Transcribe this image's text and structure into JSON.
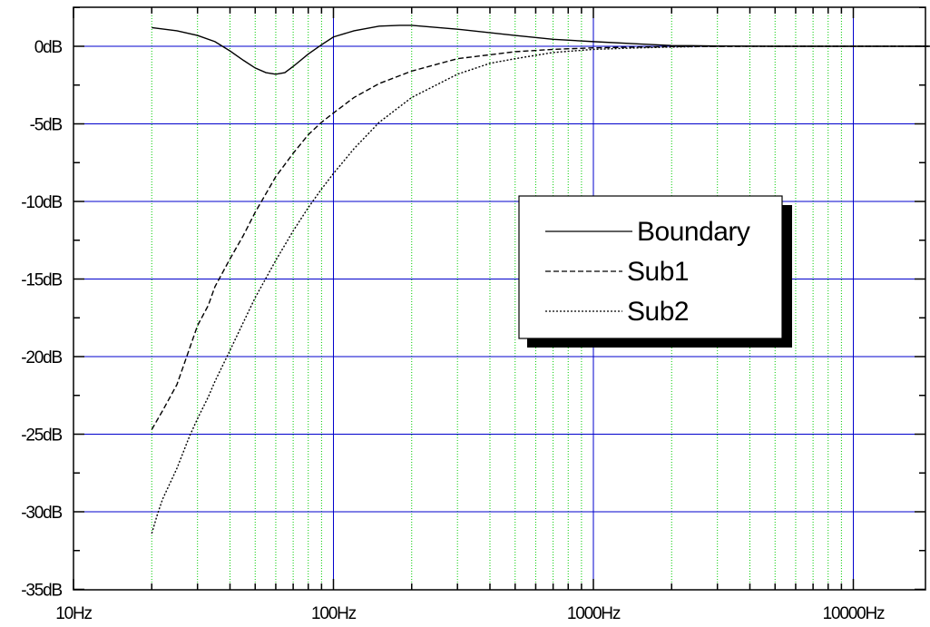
{
  "chart_data": {
    "type": "line",
    "x_scale": "log",
    "xlim": [
      10,
      20000
    ],
    "ylim": [
      -35,
      3
    ],
    "x_major_ticks": [
      10,
      100,
      1000,
      10000
    ],
    "x_tick_labels": [
      "10Hz",
      "100Hz",
      "1000Hz",
      "10000Hz"
    ],
    "y_major_ticks": [
      0,
      -5,
      -10,
      -15,
      -20,
      -25,
      -30,
      -35
    ],
    "y_tick_labels": [
      "0dB",
      "-5dB",
      "-10dB",
      "-15dB",
      "-20dB",
      "-25dB",
      "-30dB",
      "-35dB"
    ],
    "grid": {
      "major_color": "#0000cc",
      "minor_color": "#00cc00"
    },
    "legend_position": "center-right",
    "series": [
      {
        "name": "Boundary",
        "dash": "solid",
        "points": [
          [
            20,
            1.2
          ],
          [
            25,
            1.0
          ],
          [
            30,
            0.7
          ],
          [
            35,
            0.3
          ],
          [
            40,
            -0.3
          ],
          [
            45,
            -0.9
          ],
          [
            50,
            -1.4
          ],
          [
            55,
            -1.7
          ],
          [
            60,
            -1.8
          ],
          [
            65,
            -1.7
          ],
          [
            70,
            -1.3
          ],
          [
            80,
            -0.5
          ],
          [
            90,
            0.1
          ],
          [
            100,
            0.6
          ],
          [
            120,
            1.0
          ],
          [
            150,
            1.3
          ],
          [
            180,
            1.35
          ],
          [
            200,
            1.35
          ],
          [
            300,
            1.1
          ],
          [
            500,
            0.7
          ],
          [
            700,
            0.45
          ],
          [
            1000,
            0.3
          ],
          [
            1500,
            0.15
          ],
          [
            2000,
            0.05
          ],
          [
            3000,
            0.02
          ],
          [
            5000,
            0.0
          ],
          [
            10000,
            0.0
          ],
          [
            20000,
            0.0
          ]
        ]
      },
      {
        "name": "Sub1",
        "dash": "dashed",
        "points": [
          [
            20,
            -24.7
          ],
          [
            22,
            -23.5
          ],
          [
            25,
            -21.8
          ],
          [
            27,
            -20.2
          ],
          [
            30,
            -18.0
          ],
          [
            33,
            -16.7
          ],
          [
            35,
            -15.5
          ],
          [
            40,
            -13.7
          ],
          [
            45,
            -12.2
          ],
          [
            50,
            -10.7
          ],
          [
            55,
            -9.5
          ],
          [
            60,
            -8.4
          ],
          [
            70,
            -6.9
          ],
          [
            80,
            -5.7
          ],
          [
            90,
            -4.9
          ],
          [
            100,
            -4.3
          ],
          [
            120,
            -3.3
          ],
          [
            150,
            -2.4
          ],
          [
            200,
            -1.6
          ],
          [
            300,
            -0.8
          ],
          [
            500,
            -0.35
          ],
          [
            700,
            -0.2
          ],
          [
            1000,
            -0.1
          ],
          [
            1500,
            -0.05
          ],
          [
            2000,
            -0.02
          ],
          [
            5000,
            0.0
          ],
          [
            20000,
            0.0
          ]
        ]
      },
      {
        "name": "Sub2",
        "dash": "dotted",
        "points": [
          [
            20,
            -31.4
          ],
          [
            21,
            -30.2
          ],
          [
            22,
            -29.2
          ],
          [
            25,
            -27.2
          ],
          [
            28,
            -25.1
          ],
          [
            30,
            -24.0
          ],
          [
            33,
            -22.6
          ],
          [
            35,
            -21.6
          ],
          [
            40,
            -19.6
          ],
          [
            45,
            -17.8
          ],
          [
            50,
            -16.2
          ],
          [
            60,
            -13.8
          ],
          [
            70,
            -11.9
          ],
          [
            80,
            -10.4
          ],
          [
            90,
            -9.2
          ],
          [
            100,
            -8.2
          ],
          [
            120,
            -6.6
          ],
          [
            150,
            -4.9
          ],
          [
            200,
            -3.3
          ],
          [
            300,
            -1.8
          ],
          [
            400,
            -1.1
          ],
          [
            500,
            -0.8
          ],
          [
            700,
            -0.4
          ],
          [
            1000,
            -0.2
          ],
          [
            1500,
            -0.1
          ],
          [
            2000,
            -0.05
          ],
          [
            3000,
            0.0
          ],
          [
            20000,
            0.0
          ]
        ]
      }
    ]
  }
}
